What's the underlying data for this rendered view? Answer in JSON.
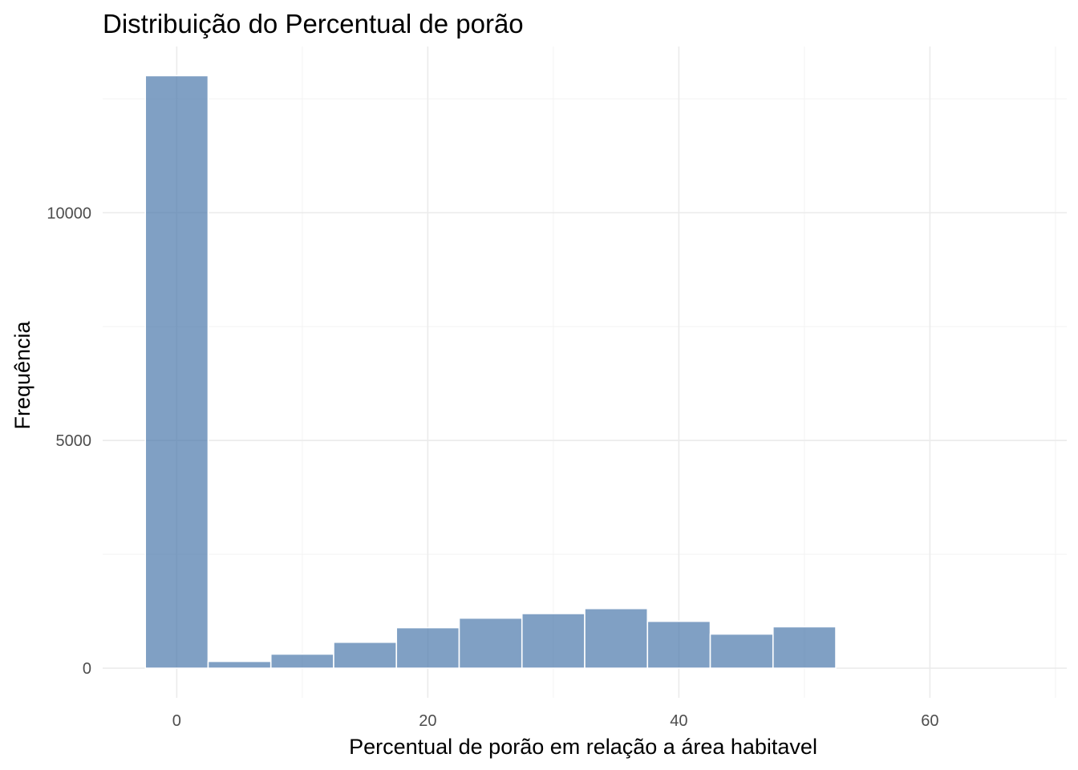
{
  "chart_data": {
    "type": "bar",
    "title": "Distribuição do Percentual de porão",
    "xlabel": "Percentual de porão em relação a área habitavel",
    "ylabel": "Frequência",
    "bin_width": 5,
    "bins": [
      {
        "start": -2.5,
        "end": 2.5,
        "value": 13010
      },
      {
        "start": 2.5,
        "end": 7.5,
        "value": 150
      },
      {
        "start": 7.5,
        "end": 12.5,
        "value": 310
      },
      {
        "start": 12.5,
        "end": 17.5,
        "value": 570
      },
      {
        "start": 17.5,
        "end": 22.5,
        "value": 890
      },
      {
        "start": 22.5,
        "end": 27.5,
        "value": 1100
      },
      {
        "start": 27.5,
        "end": 32.5,
        "value": 1200
      },
      {
        "start": 32.5,
        "end": 37.5,
        "value": 1310
      },
      {
        "start": 37.5,
        "end": 42.5,
        "value": 1030
      },
      {
        "start": 42.5,
        "end": 47.5,
        "value": 750
      },
      {
        "start": 47.5,
        "end": 52.5,
        "value": 910
      },
      {
        "start": 52.5,
        "end": 57.5,
        "value": 0
      },
      {
        "start": 57.5,
        "end": 62.5,
        "value": 0
      },
      {
        "start": 62.5,
        "end": 67.5,
        "value": 0
      }
    ],
    "xlim": [
      -5.9,
      70.9
    ],
    "ylim": [
      -650,
      13650
    ],
    "x_ticks": [
      0,
      20,
      40,
      60
    ],
    "x_minor_ticks": [
      10,
      30,
      50,
      70
    ],
    "y_ticks": [
      0,
      5000,
      10000
    ],
    "y_tick_labels": [
      "0",
      "5000",
      "10000"
    ],
    "y_minor_ticks": [
      2500,
      7500,
      12500
    ],
    "bar_color": "#4a77ab",
    "bar_opacity": 0.7,
    "grid": true,
    "legend": "none"
  }
}
